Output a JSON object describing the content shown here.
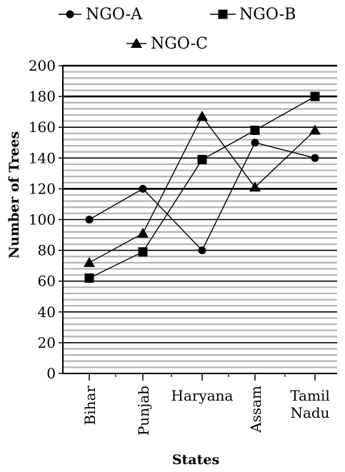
{
  "chart_data": {
    "type": "line",
    "categories": [
      "Bihar",
      "Punjab",
      "Haryana",
      "Assam",
      "Tamil Nadu"
    ],
    "category_lines": [
      [
        "Bihar"
      ],
      [
        "Punjab"
      ],
      [
        "Haryana"
      ],
      [
        "Assam"
      ],
      [
        "Tamil",
        "Nadu"
      ]
    ],
    "series": [
      {
        "name": "NGO-A",
        "marker": "circle",
        "values": [
          100,
          120,
          80,
          150,
          140
        ]
      },
      {
        "name": "NGO-B",
        "marker": "square",
        "values": [
          62,
          79,
          139,
          158,
          180
        ]
      },
      {
        "name": "NGO-C",
        "marker": "triangle",
        "values": [
          72,
          91,
          167,
          121,
          158
        ]
      }
    ],
    "xlabel": "States",
    "ylabel": "Number of Trees",
    "ylim": [
      0,
      200
    ],
    "y_ticks": [
      0,
      20,
      40,
      60,
      80,
      100,
      120,
      140,
      160,
      180,
      200
    ],
    "grid": true,
    "legend_position": "top",
    "line_color": "#000000",
    "grid_color": "#b3b3b3"
  }
}
